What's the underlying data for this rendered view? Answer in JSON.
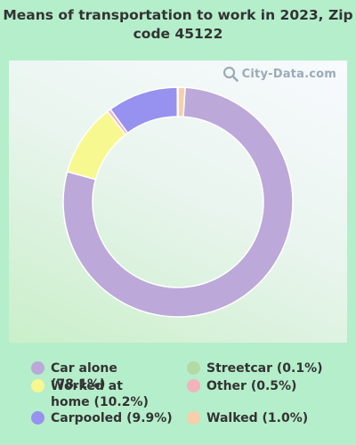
{
  "title": "Means of transportation to work in 2023, Zip code 45122",
  "watermark": "City-Data.com",
  "chart_data": {
    "type": "pie",
    "donut": true,
    "title": "Means of transportation to work in 2023, Zip code 45122",
    "series": [
      {
        "name": "Car alone",
        "value": 78.1,
        "color": "#bca8d9",
        "legend": "Car alone (78.1%)"
      },
      {
        "name": "Streetcar",
        "value": 0.1,
        "color": "#b5d9a3",
        "legend": "Streetcar (0.1%)"
      },
      {
        "name": "Worked at home",
        "value": 10.2,
        "color": "#f8f890",
        "legend": "Worked at home (10.2%)"
      },
      {
        "name": "Other",
        "value": 0.5,
        "color": "#f2b3bc",
        "legend": "Other (0.5%)"
      },
      {
        "name": "Carpooled",
        "value": 9.9,
        "color": "#9791f0",
        "legend": "Carpooled (9.9%)"
      },
      {
        "name": "Walked",
        "value": 1.0,
        "color": "#f7cfaa",
        "legend": "Walked (1.0%)"
      }
    ],
    "slice_order": [
      "Walked",
      "Car alone",
      "Worked at home",
      "Other",
      "Carpooled",
      "Streetcar"
    ],
    "legend_position": "bottom"
  }
}
